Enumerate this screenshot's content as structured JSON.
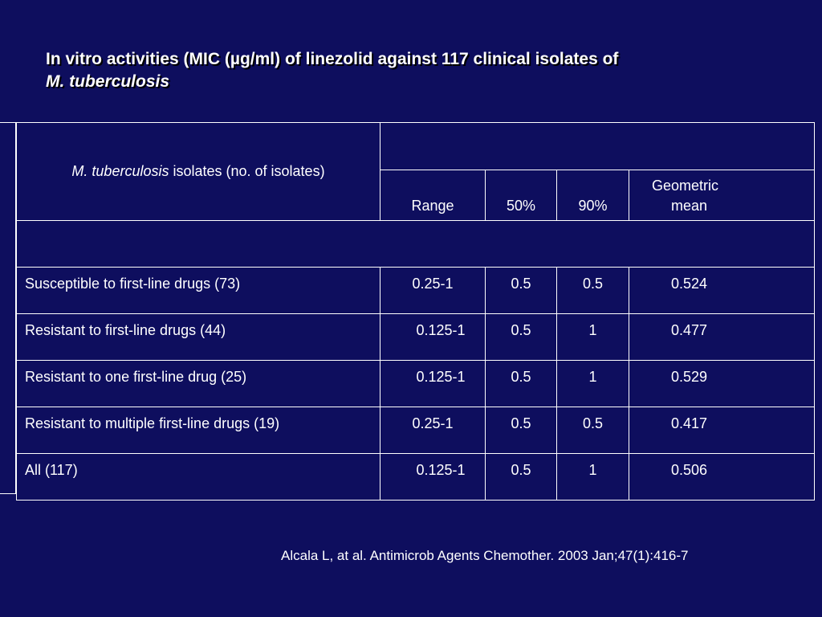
{
  "title": {
    "line1": "In vitro activities (MIC (µg/ml) of linezolid against 117 clinical isolates of",
    "line2": "M. tuberculosis"
  },
  "table": {
    "header_left_italic": "M. tuberculosis",
    "header_left_rest": " isolates (no. of isolates)",
    "columns": [
      "Range",
      "50%",
      "90%",
      "Geometric",
      "mean"
    ],
    "rows": [
      {
        "label": "Susceptible to first-line drugs (73)",
        "range": "0.25-1",
        "p50": "0.5",
        "p90": "0.5",
        "gmean": "0.524"
      },
      {
        "label": "Resistant to first-line drugs (44)",
        "range": "0.125-1",
        "p50": "0.5",
        "p90": "1",
        "gmean": "0.477"
      },
      {
        "label": "Resistant to one first-line drug (25)",
        "range": "0.125-1",
        "p50": "0.5",
        "p90": "1",
        "gmean": "0.529"
      },
      {
        "label": "Resistant to multiple first-line drugs (19)",
        "range": "0.25-1",
        "p50": "0.5",
        "p90": "0.5",
        "gmean": "0.417"
      },
      {
        "label": "All (117)",
        "range": "0.125-1",
        "p50": "0.5",
        "p90": "1",
        "gmean": "0.506"
      }
    ]
  },
  "citation": "Alcala L, at al. Antimicrob Agents Chemother. 2003 Jan;47(1):416-7",
  "colors": {
    "background": "#0e0e5e",
    "text": "#ffffff"
  }
}
